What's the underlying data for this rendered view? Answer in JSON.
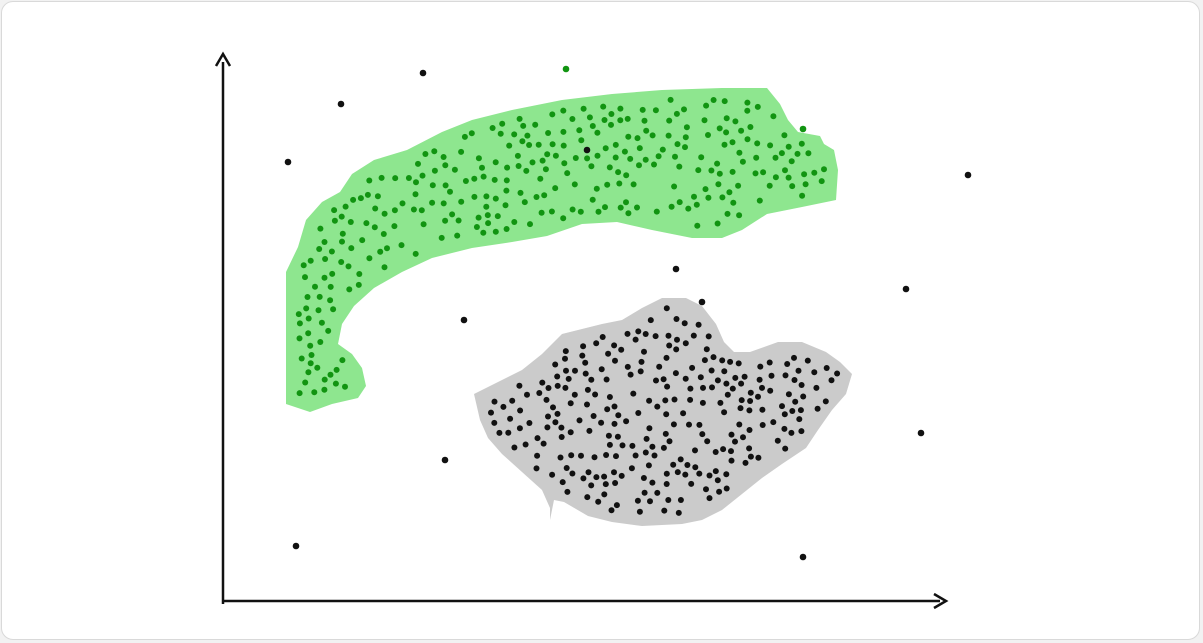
{
  "figure": {
    "colors": {
      "background": "#ffffff",
      "frame_border": "#d9d9d9",
      "axis": "#111111",
      "cluster_a_fill": "#8ee68f",
      "cluster_a_point": "#119411",
      "cluster_b_fill": "#cbcbcb",
      "cluster_b_point": "#111111",
      "outlier_point": "#111111"
    },
    "clusters": [
      {
        "id": "cluster-a",
        "region": "green",
        "point_count": 300
      },
      {
        "id": "cluster-b",
        "region": "gray",
        "point_count": 260
      }
    ],
    "outlier_count": 14,
    "icons": [
      "x-axis-arrow-icon",
      "y-axis-arrow-icon"
    ]
  }
}
